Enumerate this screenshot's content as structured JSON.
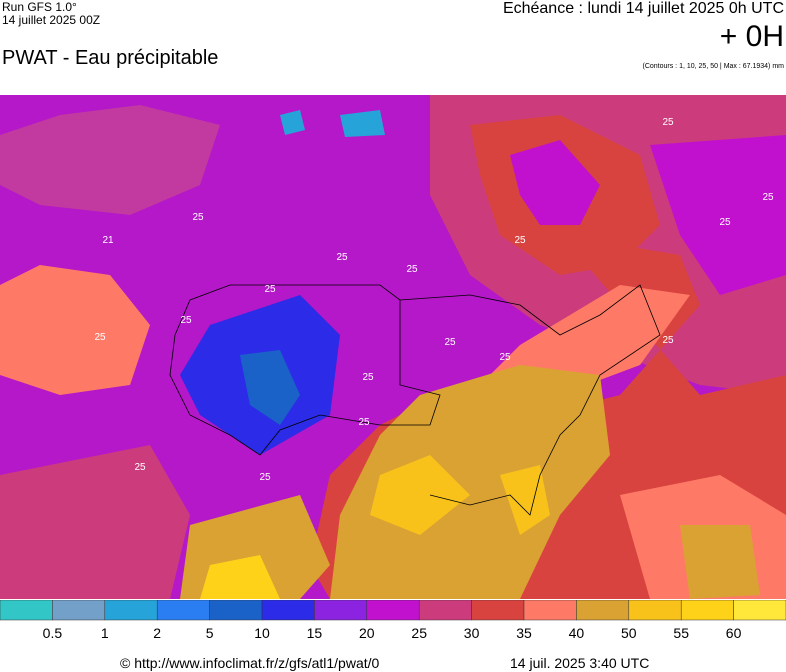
{
  "header": {
    "run": "Run GFS 1.0°",
    "run_date": "14 juillet 2025 00Z",
    "title": "PWAT - Eau précipitable",
    "echeance": "Echéance : lundi 14 juillet 2025 0h UTC",
    "offset": "+ 0H",
    "contours_note": "(Contours : 1, 10, 25, 50 | Max : 67.1934) mm"
  },
  "map": {
    "contour_labels": [
      "25",
      "25",
      "21",
      "25",
      "25",
      "25",
      "25",
      "25",
      "25",
      "25",
      "25",
      "25",
      "25",
      "25",
      "25",
      "25",
      "25",
      "25"
    ]
  },
  "legend": {
    "colors": [
      "#33c6c6",
      "#72a0c8",
      "#26a4da",
      "#2b7ef2",
      "#1b62c8",
      "#2b2be8",
      "#8b23e0",
      "#c210cf",
      "#cc3b7c",
      "#d9433f",
      "#ff7a66",
      "#daa232",
      "#f9c21a",
      "#ffd21a",
      "#ffe83a"
    ],
    "ticks": [
      0.5,
      1,
      2,
      5,
      10,
      15,
      20,
      25,
      30,
      35,
      40,
      50,
      55,
      60
    ]
  },
  "footer": {
    "url": "© http://www.infoclimat.fr/z/gfs/atl1/pwat/0",
    "timestamp": "14 juil. 2025  3:40 UTC"
  }
}
